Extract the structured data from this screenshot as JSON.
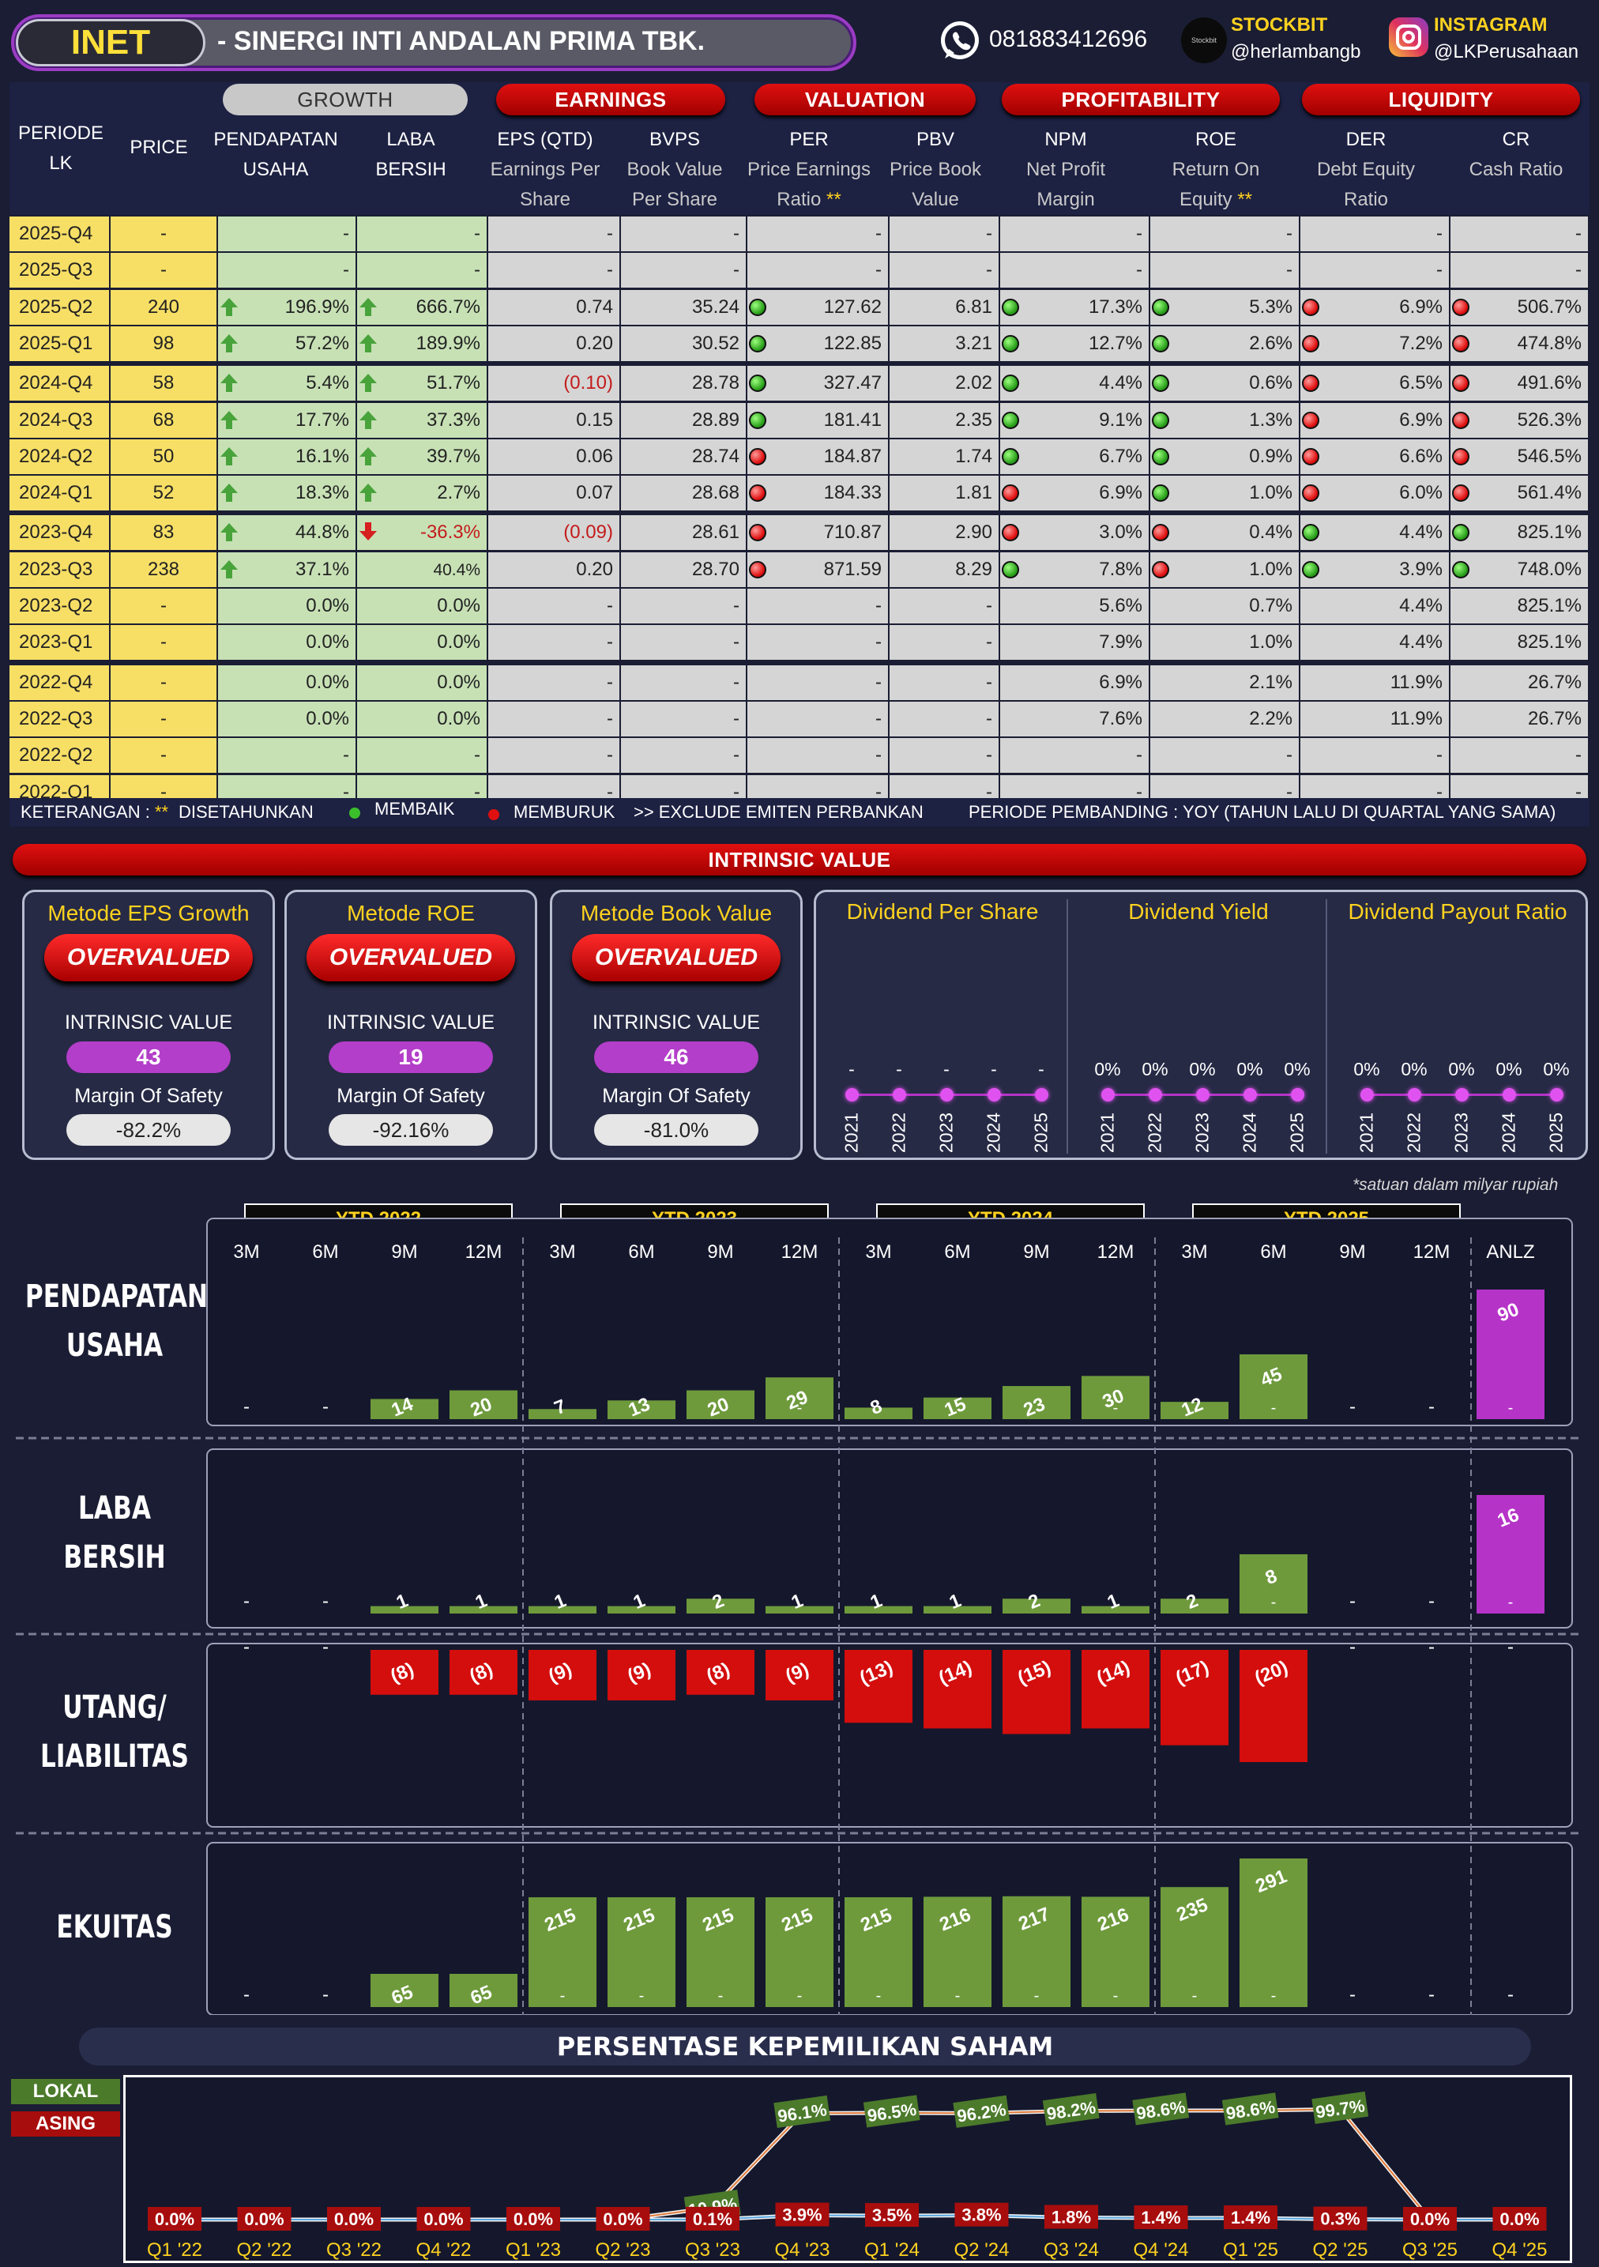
{
  "header": {
    "ticker": "INET",
    "company": "-  SINERGI INTI ANDALAN PRIMA TBK.",
    "phone": "081883412696",
    "stockbit_label": "STOCKBIT",
    "stockbit_handle": "@herlambangb",
    "stockbit_logo_text": "Stockbit",
    "instagram_label": "INSTAGRAM",
    "instagram_handle": "@LKPerusahaan"
  },
  "categories": {
    "growth": "GROWTH",
    "earnings": "EARNINGS",
    "valuation": "VALUATION",
    "profitability": "PROFITABILITY",
    "liquidity": "LIQUIDITY"
  },
  "columns": {
    "periode": "PERIODE",
    "lk": "LK",
    "price": "PRICE",
    "pend1": "PENDAPATAN",
    "pend2": "USAHA",
    "laba1": "LABA",
    "laba2": "BERSIH",
    "eps1": "EPS (QTD)",
    "eps2": "Earnings Per",
    "eps3": "Share",
    "bvps1": "BVPS",
    "bvps2": "Book Value",
    "bvps3": "Per Share",
    "per1": "PER",
    "per2": "Price Earnings",
    "per3": "Ratio",
    "per_star": "**",
    "pbv1": "PBV",
    "pbv2": "Price Book",
    "pbv3": "Value",
    "npm1": "NPM",
    "npm2": "Net Profit",
    "npm3": "Margin",
    "roe1": "ROE",
    "roe2": "Return On",
    "roe3": "Equity",
    "roe_star": "**",
    "der1": "DER",
    "der2": "Debt Equity",
    "der3": "Ratio",
    "cr1": "CR",
    "cr2": "Cash Ratio"
  },
  "table_rows": [
    {
      "periode": "2025-Q4",
      "price": "-",
      "pend": "-",
      "pend_arrow": "",
      "laba": "-",
      "laba_arrow": "",
      "eps": "-",
      "bvps": "-",
      "per": "-",
      "per_ind": "",
      "pbv": "-",
      "npm": "-",
      "npm_ind": "",
      "roe": "-",
      "roe_ind": "",
      "der": "-",
      "der_ind": "",
      "cr": "-",
      "cr_ind": ""
    },
    {
      "periode": "2025-Q3",
      "price": "-",
      "pend": "-",
      "pend_arrow": "",
      "laba": "-",
      "laba_arrow": "",
      "eps": "-",
      "bvps": "-",
      "per": "-",
      "per_ind": "",
      "pbv": "-",
      "npm": "-",
      "npm_ind": "",
      "roe": "-",
      "roe_ind": "",
      "der": "-",
      "der_ind": "",
      "cr": "-",
      "cr_ind": ""
    },
    {
      "periode": "2025-Q2",
      "price": "240",
      "pend": "196.9%",
      "pend_arrow": "up",
      "laba": "666.7%",
      "laba_arrow": "up",
      "eps": "0.74",
      "bvps": "35.24",
      "per": "127.62",
      "per_ind": "g",
      "pbv": "6.81",
      "npm": "17.3%",
      "npm_ind": "g",
      "roe": "5.3%",
      "roe_ind": "g",
      "der": "6.9%",
      "der_ind": "r",
      "cr": "506.7%",
      "cr_ind": "r"
    },
    {
      "periode": "2025-Q1",
      "price": "98",
      "pend": "57.2%",
      "pend_arrow": "up",
      "laba": "189.9%",
      "laba_arrow": "up",
      "eps": "0.20",
      "bvps": "30.52",
      "per": "122.85",
      "per_ind": "g",
      "pbv": "3.21",
      "npm": "12.7%",
      "npm_ind": "g",
      "roe": "2.6%",
      "roe_ind": "g",
      "der": "7.2%",
      "der_ind": "r",
      "cr": "474.8%",
      "cr_ind": "r"
    },
    {
      "periode": "2024-Q4",
      "price": "58",
      "pend": "5.4%",
      "pend_arrow": "up",
      "laba": "51.7%",
      "laba_arrow": "up",
      "eps": "(0.10)",
      "eps_neg": true,
      "bvps": "28.78",
      "per": "327.47",
      "per_ind": "g",
      "pbv": "2.02",
      "npm": "4.4%",
      "npm_ind": "g",
      "roe": "0.6%",
      "roe_ind": "g",
      "der": "6.5%",
      "der_ind": "r",
      "cr": "491.6%",
      "cr_ind": "r"
    },
    {
      "periode": "2024-Q3",
      "price": "68",
      "pend": "17.7%",
      "pend_arrow": "up",
      "laba": "37.3%",
      "laba_arrow": "up",
      "eps": "0.15",
      "bvps": "28.89",
      "per": "181.41",
      "per_ind": "g",
      "pbv": "2.35",
      "npm": "9.1%",
      "npm_ind": "g",
      "roe": "1.3%",
      "roe_ind": "g",
      "der": "6.9%",
      "der_ind": "r",
      "cr": "526.3%",
      "cr_ind": "r"
    },
    {
      "periode": "2024-Q2",
      "price": "50",
      "pend": "16.1%",
      "pend_arrow": "up",
      "laba": "39.7%",
      "laba_arrow": "up",
      "eps": "0.06",
      "bvps": "28.74",
      "per": "184.87",
      "per_ind": "r",
      "pbv": "1.74",
      "npm": "6.7%",
      "npm_ind": "g",
      "roe": "0.9%",
      "roe_ind": "g",
      "der": "6.6%",
      "der_ind": "r",
      "cr": "546.5%",
      "cr_ind": "r"
    },
    {
      "periode": "2024-Q1",
      "price": "52",
      "pend": "18.3%",
      "pend_arrow": "up",
      "laba": "2.7%",
      "laba_arrow": "up",
      "eps": "0.07",
      "bvps": "28.68",
      "per": "184.33",
      "per_ind": "r",
      "pbv": "1.81",
      "npm": "6.9%",
      "npm_ind": "r",
      "roe": "1.0%",
      "roe_ind": "g",
      "der": "6.0%",
      "der_ind": "r",
      "cr": "561.4%",
      "cr_ind": "r"
    },
    {
      "periode": "2023-Q4",
      "price": "83",
      "pend": "44.8%",
      "pend_arrow": "up",
      "laba": "-36.3%",
      "laba_arrow": "down",
      "laba_neg": true,
      "eps": "(0.09)",
      "eps_neg": true,
      "bvps": "28.61",
      "per": "710.87",
      "per_ind": "r",
      "pbv": "2.90",
      "npm": "3.0%",
      "npm_ind": "r",
      "roe": "0.4%",
      "roe_ind": "r",
      "der": "4.4%",
      "der_ind": "g",
      "cr": "825.1%",
      "cr_ind": "g"
    },
    {
      "periode": "2023-Q3",
      "price": "238",
      "pend": "37.1%",
      "pend_arrow": "up",
      "laba": "40.4%",
      "laba_arrow": "",
      "eps": "0.20",
      "bvps": "28.70",
      "per": "871.59",
      "per_ind": "r",
      "pbv": "8.29",
      "npm": "7.8%",
      "npm_ind": "g",
      "roe": "1.0%",
      "roe_ind": "r",
      "der": "3.9%",
      "der_ind": "g",
      "cr": "748.0%",
      "cr_ind": "g"
    },
    {
      "periode": "2023-Q2",
      "price": "-",
      "pend": "0.0%",
      "pend_arrow": "",
      "laba": "0.0%",
      "laba_arrow": "",
      "eps": "-",
      "bvps": "-",
      "per": "-",
      "per_ind": "",
      "pbv": "-",
      "npm": "5.6%",
      "npm_ind": "",
      "roe": "0.7%",
      "roe_ind": "",
      "der": "4.4%",
      "der_ind": "",
      "cr": "825.1%",
      "cr_ind": ""
    },
    {
      "periode": "2023-Q1",
      "price": "-",
      "pend": "0.0%",
      "pend_arrow": "",
      "laba": "0.0%",
      "laba_arrow": "",
      "eps": "-",
      "bvps": "-",
      "per": "-",
      "per_ind": "",
      "pbv": "-",
      "npm": "7.9%",
      "npm_ind": "",
      "roe": "1.0%",
      "roe_ind": "",
      "der": "4.4%",
      "der_ind": "",
      "cr": "825.1%",
      "cr_ind": ""
    },
    {
      "periode": "2022-Q4",
      "price": "-",
      "pend": "0.0%",
      "pend_arrow": "",
      "laba": "0.0%",
      "laba_arrow": "",
      "eps": "-",
      "bvps": "-",
      "per": "-",
      "per_ind": "",
      "pbv": "-",
      "npm": "6.9%",
      "npm_ind": "",
      "roe": "2.1%",
      "roe_ind": "",
      "der": "11.9%",
      "der_ind": "",
      "cr": "26.7%",
      "cr_ind": ""
    },
    {
      "periode": "2022-Q3",
      "price": "-",
      "pend": "0.0%",
      "pend_arrow": "",
      "laba": "0.0%",
      "laba_arrow": "",
      "eps": "-",
      "bvps": "-",
      "per": "-",
      "per_ind": "",
      "pbv": "-",
      "npm": "7.6%",
      "npm_ind": "",
      "roe": "2.2%",
      "roe_ind": "",
      "der": "11.9%",
      "der_ind": "",
      "cr": "26.7%",
      "cr_ind": ""
    },
    {
      "periode": "2022-Q2",
      "price": "-",
      "pend": "-",
      "pend_arrow": "",
      "laba": "-",
      "laba_arrow": "",
      "eps": "-",
      "bvps": "-",
      "per": "-",
      "per_ind": "",
      "pbv": "-",
      "npm": "-",
      "npm_ind": "",
      "roe": "-",
      "roe_ind": "",
      "der": "-",
      "der_ind": "",
      "cr": "-",
      "cr_ind": ""
    },
    {
      "periode": "2022-Q1",
      "price": "-",
      "pend": "-",
      "pend_arrow": "",
      "laba": "-",
      "laba_arrow": "",
      "eps": "-",
      "bvps": "-",
      "per": "-",
      "per_ind": "",
      "pbv": "-",
      "npm": "-",
      "npm_ind": "",
      "roe": "-",
      "roe_ind": "",
      "der": "-",
      "der_ind": "",
      "cr": "-",
      "cr_ind": ""
    }
  ],
  "legend": {
    "keterangan": "KETERANGAN :",
    "stars": "**",
    "disetahunkan": "DISETAHUNKAN",
    "membaik": "MEMBAIK",
    "memburuk": "MEMBURUK",
    "exclude": ">> EXCLUDE EMITEN PERBANKAN",
    "pembanding": "PERIODE PEMBANDING : YOY (TAHUN LALU DI QUARTAL YANG SAMA)"
  },
  "intrinsic": {
    "title": "INTRINSIC VALUE",
    "iv_label": "INTRINSIC VALUE",
    "mos_label": "Margin Of Safety",
    "methods": [
      {
        "title": "Metode EPS Growth",
        "status": "OVERVALUED",
        "value": "43",
        "mos": "-82.2%"
      },
      {
        "title": "Metode ROE",
        "status": "OVERVALUED",
        "value": "19",
        "mos": "-92.16%"
      },
      {
        "title": "Metode Book Value",
        "status": "OVERVALUED",
        "value": "46",
        "mos": "-81.0%"
      }
    ]
  },
  "dividend": {
    "years": [
      "2021",
      "2022",
      "2023",
      "2024",
      "2025"
    ],
    "panels": [
      {
        "title": "Dividend Per Share",
        "values": [
          "-",
          "-",
          "-",
          "-",
          "-"
        ]
      },
      {
        "title": "Dividend Yield",
        "values": [
          "0%",
          "0%",
          "0%",
          "0%",
          "0%"
        ]
      },
      {
        "title": "Dividend Payout Ratio",
        "values": [
          "0%",
          "0%",
          "0%",
          "0%",
          "0%"
        ]
      }
    ]
  },
  "units_note": "*satuan dalam milyar rupiah",
  "chart_data": [
    {
      "type": "bar",
      "title": "PENDAPATAN USAHA",
      "group_labels": [
        "YTD 2022",
        "YTD 2023",
        "YTD 2024",
        "YTD 2025"
      ],
      "categories": [
        "3M",
        "6M",
        "9M",
        "12M",
        "3M",
        "6M",
        "9M",
        "12M",
        "3M",
        "6M",
        "9M",
        "12M",
        "3M",
        "6M",
        "9M",
        "12M",
        "ANLZ"
      ],
      "values": [
        null,
        null,
        14,
        20,
        7,
        13,
        20,
        29,
        8,
        15,
        23,
        30,
        12,
        45,
        null,
        null,
        90
      ],
      "labels": [
        "-",
        "-",
        "14",
        "20",
        "7",
        "13",
        "20",
        "29",
        "8",
        "15",
        "23",
        "30",
        "12",
        "45",
        "-",
        "-",
        "90"
      ],
      "ylim": [
        0,
        90
      ],
      "colors": {
        "bar": "#6e9a3c",
        "anlz": "#b633c8"
      }
    },
    {
      "type": "bar",
      "title": "LABA BERSIH",
      "values": [
        null,
        null,
        1,
        1,
        1,
        1,
        2,
        1,
        1,
        1,
        2,
        1,
        2,
        8,
        null,
        null,
        16
      ],
      "labels": [
        "-",
        "-",
        "1",
        "1",
        "1",
        "1",
        "2",
        "1",
        "1",
        "1",
        "2",
        "1",
        "2",
        "8",
        "-",
        "-",
        "16"
      ],
      "ylim": [
        0,
        16
      ]
    },
    {
      "type": "bar",
      "title": "UTANG/ LIABILITAS",
      "values": [
        null,
        null,
        -8,
        -8,
        -9,
        -9,
        -8,
        -9,
        -13,
        -14,
        -15,
        -14,
        -17,
        -20,
        null,
        null,
        null
      ],
      "labels": [
        "-",
        "-",
        "(8)",
        "(8)",
        "(9)",
        "(9)",
        "(8)",
        "(9)",
        "(13)",
        "(14)",
        "(15)",
        "(14)",
        "(17)",
        "(20)",
        "-",
        "-",
        "-"
      ],
      "ylim": [
        -20,
        0
      ],
      "colors": {
        "bar": "#d40d0d"
      }
    },
    {
      "type": "bar",
      "title": "EKUITAS",
      "values": [
        null,
        null,
        65,
        65,
        215,
        215,
        215,
        215,
        215,
        216,
        217,
        216,
        235,
        291,
        null,
        null,
        null
      ],
      "labels": [
        "-",
        "-",
        "65",
        "65",
        "215",
        "215",
        "215",
        "215",
        "215",
        "216",
        "217",
        "216",
        "235",
        "291",
        "-",
        "-",
        "-"
      ],
      "ylim": [
        0,
        291
      ]
    },
    {
      "type": "line",
      "title": "PERSENTASE KEPEMILIKAN SAHAM",
      "categories": [
        "Q1 '22",
        "Q2 '22",
        "Q3 '22",
        "Q4 '22",
        "Q1 '23",
        "Q2 '23",
        "Q3 '23",
        "Q4 '23",
        "Q1 '24",
        "Q2 '24",
        "Q3 '24",
        "Q4 '24",
        "Q1 '25",
        "Q2 '25",
        "Q3 '25",
        "Q4 '25"
      ],
      "series": [
        {
          "name": "LOKAL",
          "values": [
            0,
            0,
            0,
            0,
            0,
            0,
            10.9,
            96.1,
            96.5,
            96.2,
            98.2,
            98.6,
            98.6,
            99.7,
            0,
            0
          ],
          "labels": [
            "",
            "",
            "",
            "",
            "",
            "",
            "10.9%",
            "96.1%",
            "96.5%",
            "96.2%",
            "98.2%",
            "98.6%",
            "98.6%",
            "99.7%",
            "",
            ""
          ]
        },
        {
          "name": "ASING",
          "values": [
            0,
            0,
            0,
            0,
            0,
            0,
            0.1,
            3.9,
            3.5,
            3.8,
            1.8,
            1.4,
            1.4,
            0.3,
            0,
            0
          ],
          "labels": [
            "0.0%",
            "0.0%",
            "0.0%",
            "0.0%",
            "0.0%",
            "0.0%",
            "0.1%",
            "3.9%",
            "3.5%",
            "3.8%",
            "1.8%",
            "1.4%",
            "1.4%",
            "0.3%",
            "0.0%",
            "0.0%"
          ]
        }
      ],
      "ylim": [
        0,
        100
      ],
      "colors": {
        "lokal": "#4b7a2b",
        "asing": "#a80d0d"
      }
    }
  ],
  "row_labels": {
    "pend1": "PENDAPATAN",
    "pend2": "USAHA",
    "laba1": "LABA",
    "laba2": "BERSIH",
    "utang1": "UTANG/",
    "utang2": "LIABILITAS",
    "ekuitas": "EKUITAS"
  },
  "ownership_title": "PERSENTASE KEPEMILIKAN SAHAM"
}
